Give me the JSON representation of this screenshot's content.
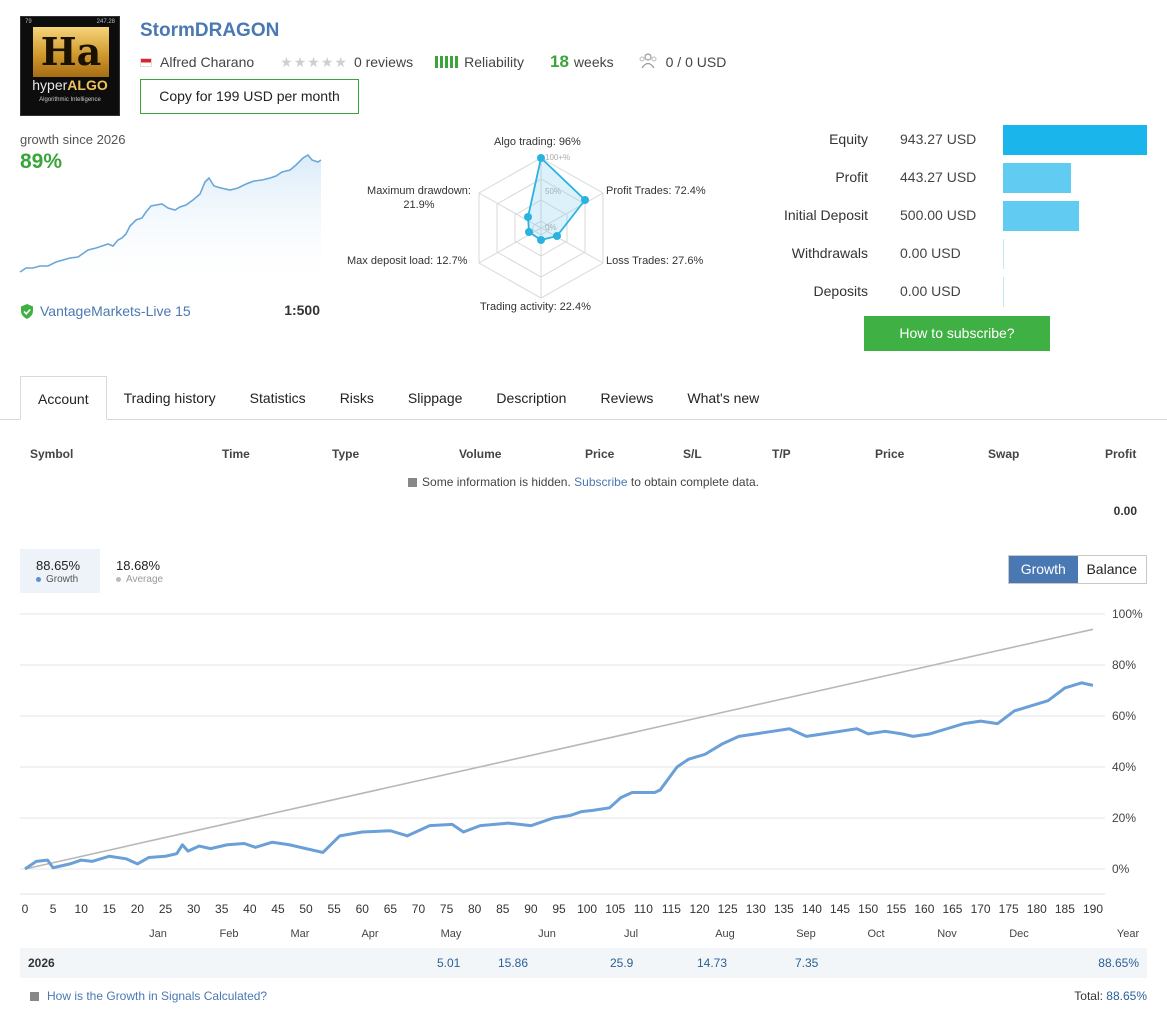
{
  "header": {
    "logo_text": "Ha",
    "logo_brand_a": "hyper",
    "logo_brand_b": "ALGO",
    "logo_sub": "Algorithmic Intelligence",
    "logo_corner_left": "79",
    "logo_corner_right": "247.28",
    "title": "StormDRAGON",
    "author": "Alfred Charano",
    "reviews": "0 reviews",
    "reliability": "Reliability",
    "weeks_num": "18",
    "weeks_label": "weeks",
    "subscribers": "0 / 0 USD",
    "copy_button": "Copy for 199 USD per month"
  },
  "summary": {
    "growth_label": "growth since 2026",
    "growth_value": "89%",
    "broker": "VantageMarkets-Live 15",
    "leverage": "1:500"
  },
  "radar": {
    "labels": {
      "algo": "Algo trading: 96%",
      "profit": "Profit Trades: 72.4%",
      "loss": "Loss Trades: 27.6%",
      "activity": "Trading activity: 22.4%",
      "deposit_load": "Max deposit load: 12.7%",
      "drawdown_a": "Maximum drawdown:",
      "drawdown_b": "21.9%"
    },
    "scale": {
      "outer": "100+%",
      "mid": "50%",
      "inner": "0%"
    },
    "values": [
      96,
      72.4,
      27.6,
      22.4,
      12.7,
      21.9
    ]
  },
  "stats": [
    {
      "label": "Equity",
      "value": "943.27 USD",
      "amount": 943.27,
      "color": "#1ab5ea"
    },
    {
      "label": "Profit",
      "value": "443.27 USD",
      "amount": 443.27,
      "color": "#62cbf2"
    },
    {
      "label": "Initial Deposit",
      "value": "500.00 USD",
      "amount": 500.0,
      "color": "#62cbf2"
    },
    {
      "label": "Withdrawals",
      "value": "0.00 USD",
      "amount": 0,
      "color": "#62cbf2"
    },
    {
      "label": "Deposits",
      "value": "0.00 USD",
      "amount": 0,
      "color": "#62cbf2"
    }
  ],
  "subscribe_button": "How to subscribe?",
  "tabs": [
    "Account",
    "Trading history",
    "Statistics",
    "Risks",
    "Slippage",
    "Description",
    "Reviews",
    "What's new"
  ],
  "table": {
    "headers": [
      "Symbol",
      "Time",
      "Type",
      "Volume",
      "Price",
      "S/L",
      "T/P",
      "Price",
      "Swap",
      "Profit"
    ],
    "hidden_a": "Some information is hidden.",
    "hidden_link": "Subscribe",
    "hidden_b": "to obtain complete data.",
    "total_profit": "0.00"
  },
  "legend": {
    "growth_pct": "88.65%",
    "growth_label": "Growth",
    "avg_pct": "18.68%",
    "avg_label": "Average"
  },
  "toggle": {
    "growth": "Growth",
    "balance": "Balance"
  },
  "chart_data": {
    "type": "line",
    "xlabel": "",
    "ylabel": "",
    "xlim": [
      0,
      190
    ],
    "ylim": [
      0,
      100
    ],
    "x_ticks": [
      0,
      5,
      10,
      15,
      20,
      25,
      30,
      35,
      40,
      45,
      50,
      55,
      60,
      65,
      70,
      75,
      80,
      85,
      90,
      95,
      100,
      105,
      110,
      115,
      120,
      125,
      130,
      135,
      140,
      145,
      150,
      155,
      160,
      165,
      170,
      175,
      180,
      185,
      190
    ],
    "y_ticks": [
      "0%",
      "20%",
      "40%",
      "60%",
      "80%",
      "100%"
    ],
    "months": [
      "Jan",
      "Feb",
      "Mar",
      "Apr",
      "May",
      "Jun",
      "Jul",
      "Aug",
      "Sep",
      "Oct",
      "Nov",
      "Dec",
      "Year"
    ],
    "series": [
      {
        "name": "Growth",
        "color": "#6a9fd8",
        "points": [
          [
            0,
            0
          ],
          [
            2,
            3
          ],
          [
            4,
            3.5
          ],
          [
            5,
            0.5
          ],
          [
            8,
            2
          ],
          [
            10,
            3.5
          ],
          [
            12,
            3
          ],
          [
            15,
            5
          ],
          [
            18,
            4
          ],
          [
            20,
            2
          ],
          [
            22,
            4.5
          ],
          [
            25,
            5
          ],
          [
            27,
            6
          ],
          [
            28,
            9.5
          ],
          [
            29,
            7
          ],
          [
            31,
            9
          ],
          [
            33,
            8
          ],
          [
            36,
            9.5
          ],
          [
            39,
            10
          ],
          [
            41,
            8.5
          ],
          [
            44,
            10.5
          ],
          [
            47,
            9.5
          ],
          [
            50,
            8
          ],
          [
            53,
            6.5
          ],
          [
            56,
            13
          ],
          [
            60,
            14.5
          ],
          [
            65,
            15
          ],
          [
            68,
            13
          ],
          [
            72,
            17
          ],
          [
            76,
            17.5
          ],
          [
            78,
            14.5
          ],
          [
            81,
            17
          ],
          [
            86,
            18
          ],
          [
            90,
            17
          ],
          [
            94,
            20
          ],
          [
            97,
            21
          ],
          [
            99,
            22.5
          ],
          [
            101,
            23
          ],
          [
            104,
            24
          ],
          [
            106,
            28
          ],
          [
            108,
            30
          ],
          [
            112,
            30
          ],
          [
            113,
            31
          ],
          [
            116,
            40
          ],
          [
            118,
            43
          ],
          [
            121,
            45
          ],
          [
            124,
            49
          ],
          [
            127,
            52
          ],
          [
            130,
            53
          ],
          [
            133,
            54
          ],
          [
            136,
            55
          ],
          [
            139,
            52
          ],
          [
            142,
            53
          ],
          [
            145,
            54
          ],
          [
            148,
            55
          ],
          [
            150,
            53
          ],
          [
            153,
            54
          ],
          [
            156,
            53
          ],
          [
            158,
            52
          ],
          [
            161,
            53
          ],
          [
            164,
            55
          ],
          [
            167,
            57
          ],
          [
            170,
            58
          ],
          [
            173,
            57
          ],
          [
            176,
            62
          ],
          [
            179,
            64
          ],
          [
            182,
            66
          ],
          [
            185,
            71
          ],
          [
            188,
            73
          ],
          [
            190,
            72
          ]
        ],
        "final": 88.65
      },
      {
        "name": "Average",
        "color": "#b8b8b8",
        "points": [
          [
            0,
            0
          ],
          [
            190,
            94
          ]
        ]
      }
    ]
  },
  "year_row": {
    "year": "2026",
    "values": [
      {
        "month": "May",
        "value": "5.01"
      },
      {
        "month": "Jun",
        "value": "15.86"
      },
      {
        "month": "Jul",
        "value": "25.9"
      },
      {
        "month": "Aug",
        "value": "14.73"
      },
      {
        "month": "Sep",
        "value": "7.35"
      }
    ],
    "total": "88.65%"
  },
  "footer": {
    "link": "How is the Growth in Signals Calculated?",
    "total_label": "Total:",
    "total_value": "88.65%"
  }
}
